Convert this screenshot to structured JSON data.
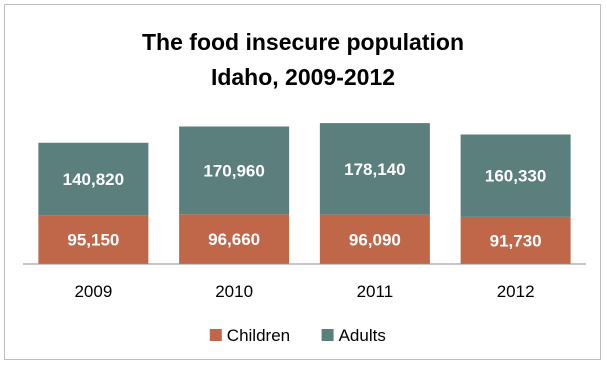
{
  "chart_data": {
    "type": "bar",
    "stacked": true,
    "title_lines": [
      "The food insecure population",
      "Idaho, 2009-2012"
    ],
    "categories": [
      "2009",
      "2010",
      "2011",
      "2012"
    ],
    "series": [
      {
        "name": "Children",
        "values": [
          95150,
          96660,
          96090,
          91730
        ],
        "color": "#c0674a",
        "labels": [
          "95,150",
          "96,660",
          "96,090",
          "91,730"
        ]
      },
      {
        "name": "Adults",
        "values": [
          140820,
          170960,
          178140,
          160330
        ],
        "color": "#5b7f7c",
        "labels": [
          "140,820",
          "170,960",
          "178,140",
          "160,330"
        ]
      }
    ],
    "ylim": [
      0,
      290000
    ],
    "grid": false,
    "legend_position": "bottom"
  }
}
